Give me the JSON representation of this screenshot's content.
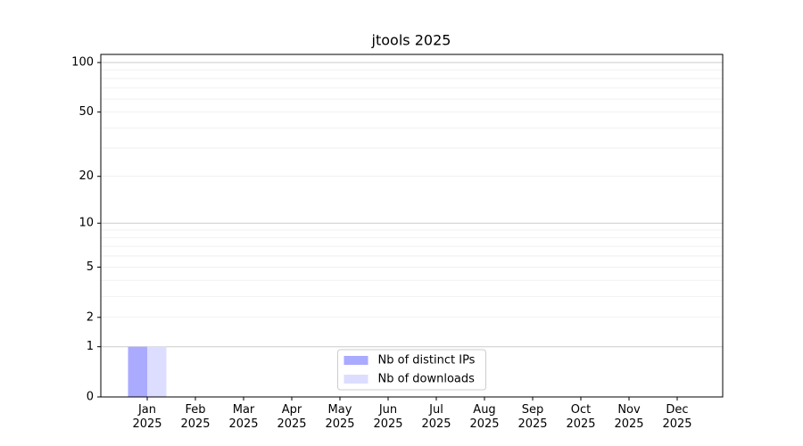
{
  "chart_data": {
    "type": "bar",
    "title": "jtools 2025",
    "categories": [
      "Jan\n2025",
      "Feb\n2025",
      "Mar\n2025",
      "Apr\n2025",
      "May\n2025",
      "Jun\n2025",
      "Jul\n2025",
      "Aug\n2025",
      "Sep\n2025",
      "Oct\n2025",
      "Nov\n2025",
      "Dec\n2025"
    ],
    "series": [
      {
        "name": "Nb of distinct IPs",
        "color": "#aaaaff",
        "values": [
          1,
          0,
          0,
          0,
          0,
          0,
          0,
          0,
          0,
          0,
          0,
          0
        ]
      },
      {
        "name": "Nb of downloads",
        "color": "#ddddff",
        "values": [
          1,
          0,
          0,
          0,
          0,
          0,
          0,
          0,
          0,
          0,
          0,
          0
        ]
      }
    ],
    "y_scale": "log1p",
    "ylim": [
      0,
      112
    ],
    "yticks": [
      0,
      1,
      2,
      5,
      10,
      20,
      50,
      100
    ],
    "major_grid": [
      1,
      10,
      100
    ],
    "minor_grid": [
      2,
      3,
      4,
      5,
      6,
      7,
      8,
      9,
      20,
      30,
      40,
      50,
      60,
      70,
      80,
      90
    ],
    "grid": true,
    "legend": "lower center"
  }
}
